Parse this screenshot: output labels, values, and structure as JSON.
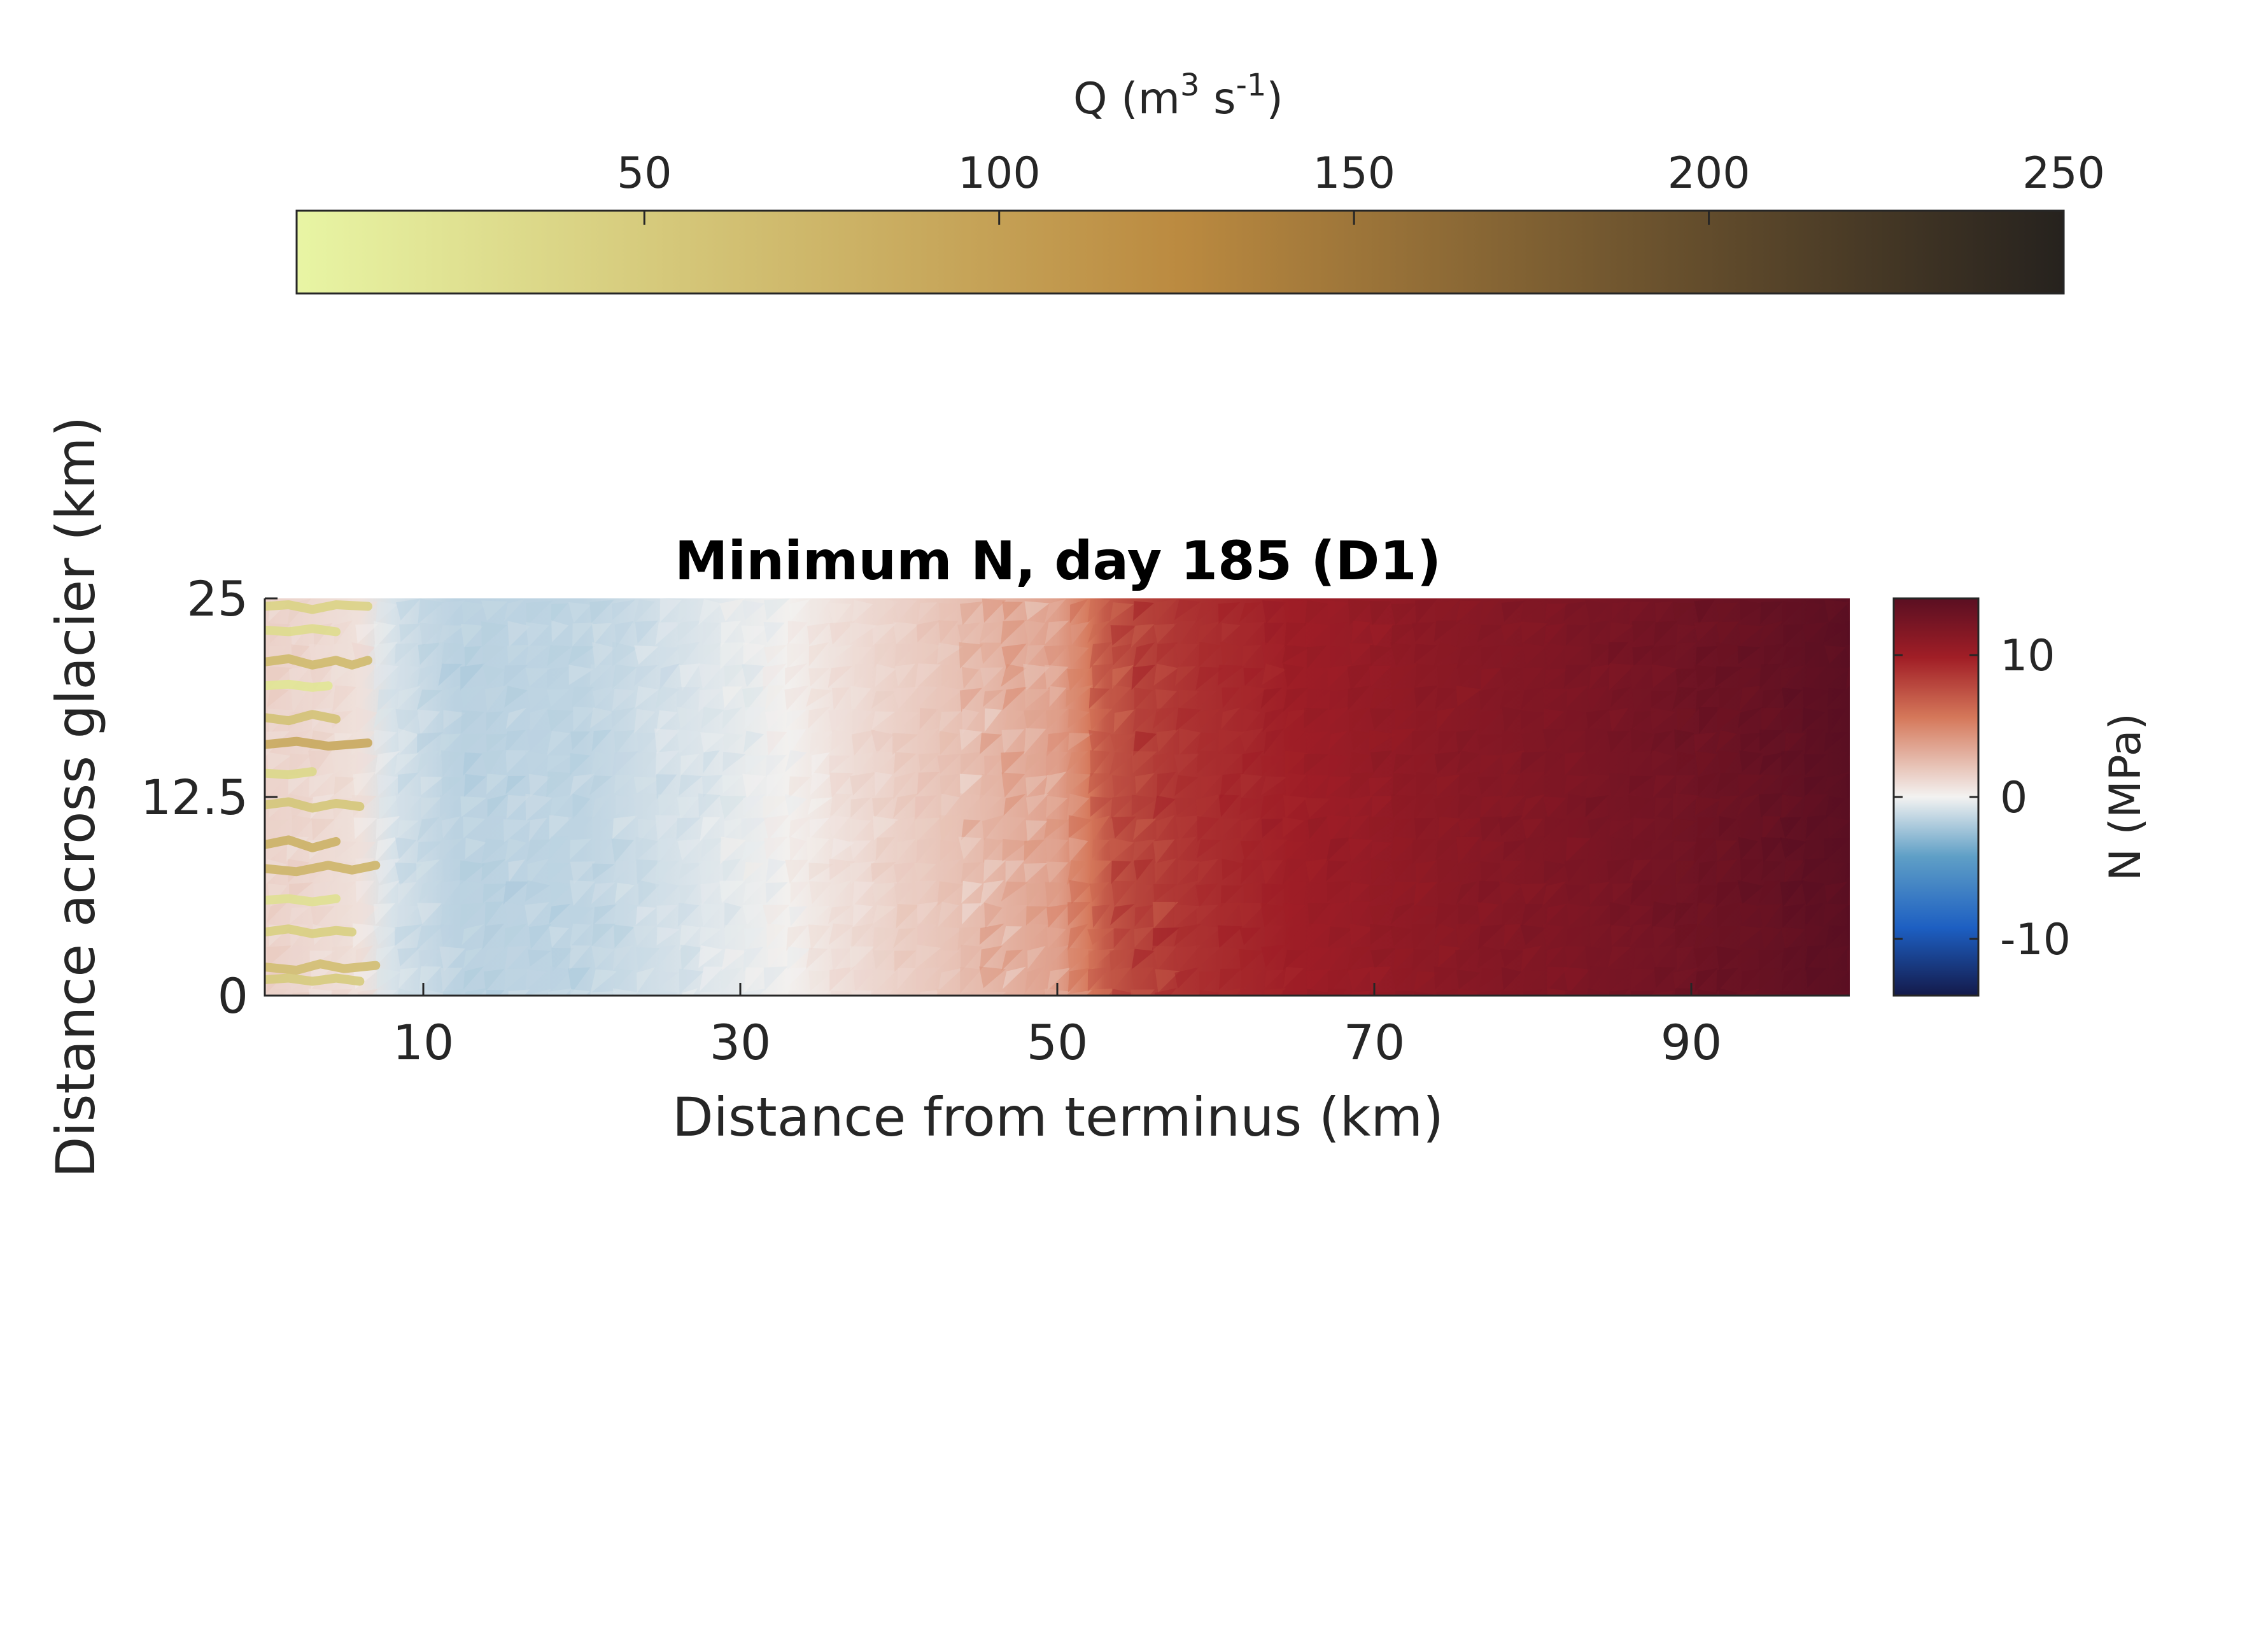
{
  "chart_data": {
    "type": "heatmap",
    "title": "Minimum N, day 185 (D1)",
    "xlabel": "Distance from terminus (km)",
    "ylabel": "Distance across glacier (km)",
    "xlim": [
      0,
      100
    ],
    "ylim": [
      0,
      25
    ],
    "xticks": [
      10,
      30,
      50,
      70,
      90
    ],
    "xtick_labels": [
      "10",
      "30",
      "50",
      "70",
      "90"
    ],
    "yticks": [
      0,
      12.5,
      25
    ],
    "ytick_labels": [
      "0",
      "12.5",
      "25"
    ],
    "n_profile": {
      "unit": "MPa",
      "x": [
        0,
        3,
        6,
        8,
        12,
        20,
        28,
        33,
        38,
        45,
        50,
        52,
        53,
        55,
        58,
        65,
        75,
        85,
        95,
        100
      ],
      "values": [
        1.5,
        1.2,
        0.8,
        -0.8,
        -1.6,
        -1.5,
        -0.6,
        0.1,
        1.2,
        2.5,
        3.8,
        5.5,
        7.0,
        8.0,
        8.8,
        10.0,
        11.2,
        12.2,
        13.3,
        14.0
      ]
    },
    "n_colorbar": {
      "label": "N (MPa)",
      "range": [
        -14,
        14
      ],
      "ticks": [
        -10,
        0,
        10
      ],
      "tick_labels": [
        "-10",
        "0",
        "10"
      ],
      "colors": {
        "min": "#141a4a",
        "low": "#1d5fc2",
        "mid_low": "#5f9fc6",
        "zero": "#f3f2f1",
        "mid_high": "#d5785a",
        "high": "#a11e26",
        "max": "#5a0f22"
      }
    },
    "q_colorbar": {
      "label_text": "Q (m",
      "label_sup1": "3",
      "label_mid": " s",
      "label_sup2": "-1",
      "label_end": ")",
      "range": [
        1,
        250
      ],
      "ticks": [
        50,
        100,
        150,
        200,
        250
      ],
      "tick_labels": [
        "50",
        "100",
        "150",
        "200",
        "250"
      ],
      "placement": "top",
      "colors": {
        "min": "#e8f5a4",
        "mid": "#bb8a40",
        "max": "#26221e"
      }
    },
    "channels": {
      "unit": "m3 s-1",
      "series": [
        {
          "y_km": 24.5,
          "x_km": [
            0,
            1.5,
            3,
            4.5,
            6.5
          ],
          "y_offsets": [
            0,
            0.1,
            -0.2,
            0.1,
            0
          ],
          "q": 40
        },
        {
          "y_km": 23.0,
          "x_km": [
            0,
            1.5,
            3,
            4.5
          ],
          "y_offsets": [
            0,
            -0.1,
            0.1,
            -0.1
          ],
          "q": 30
        },
        {
          "y_km": 21.0,
          "x_km": [
            0,
            1.5,
            3,
            4.5,
            5.5,
            6.5
          ],
          "y_offsets": [
            0,
            0.2,
            -0.2,
            0.1,
            -0.2,
            0.1
          ],
          "q": 70
        },
        {
          "y_km": 19.5,
          "x_km": [
            0,
            1.5,
            3,
            4.0
          ],
          "y_offsets": [
            0,
            0.1,
            -0.1,
            0
          ],
          "q": 20
        },
        {
          "y_km": 17.5,
          "x_km": [
            0,
            1.5,
            3,
            4.5
          ],
          "y_offsets": [
            0,
            -0.2,
            0.2,
            -0.1
          ],
          "q": 60
        },
        {
          "y_km": 15.8,
          "x_km": [
            0,
            2,
            4,
            6.5
          ],
          "y_offsets": [
            0,
            0.2,
            -0.1,
            0.1
          ],
          "q": 90
        },
        {
          "y_km": 14.0,
          "x_km": [
            0,
            1.5,
            3
          ],
          "y_offsets": [
            0,
            -0.1,
            0.1
          ],
          "q": 35
        },
        {
          "y_km": 12.0,
          "x_km": [
            0,
            1.5,
            3,
            4.5,
            6.0
          ],
          "y_offsets": [
            0,
            0.2,
            -0.2,
            0.1,
            -0.1
          ],
          "q": 55
        },
        {
          "y_km": 9.5,
          "x_km": [
            0,
            1.5,
            3,
            4.5
          ],
          "y_offsets": [
            0,
            0.3,
            -0.2,
            0.2
          ],
          "q": 80
        },
        {
          "y_km": 8.0,
          "x_km": [
            0,
            2,
            4,
            5.5,
            7.0
          ],
          "y_offsets": [
            0,
            -0.2,
            0.2,
            -0.1,
            0.2
          ],
          "q": 75
        },
        {
          "y_km": 6.0,
          "x_km": [
            0,
            1.5,
            3,
            4.5
          ],
          "y_offsets": [
            0,
            0.1,
            -0.1,
            0.1
          ],
          "q": 25
        },
        {
          "y_km": 4.0,
          "x_km": [
            0,
            1.5,
            3,
            4.5,
            5.5
          ],
          "y_offsets": [
            0,
            0.2,
            -0.1,
            0.1,
            0
          ],
          "q": 45
        },
        {
          "y_km": 1.8,
          "x_km": [
            0,
            2,
            3.5,
            5.0,
            7.0
          ],
          "y_offsets": [
            0,
            -0.2,
            0.2,
            -0.1,
            0.1
          ],
          "q": 65
        },
        {
          "y_km": 1.0,
          "x_km": [
            0,
            1.5,
            3,
            4.5,
            6.0
          ],
          "y_offsets": [
            0,
            0.1,
            -0.1,
            0.1,
            -0.1
          ],
          "q": 50
        }
      ]
    }
  }
}
